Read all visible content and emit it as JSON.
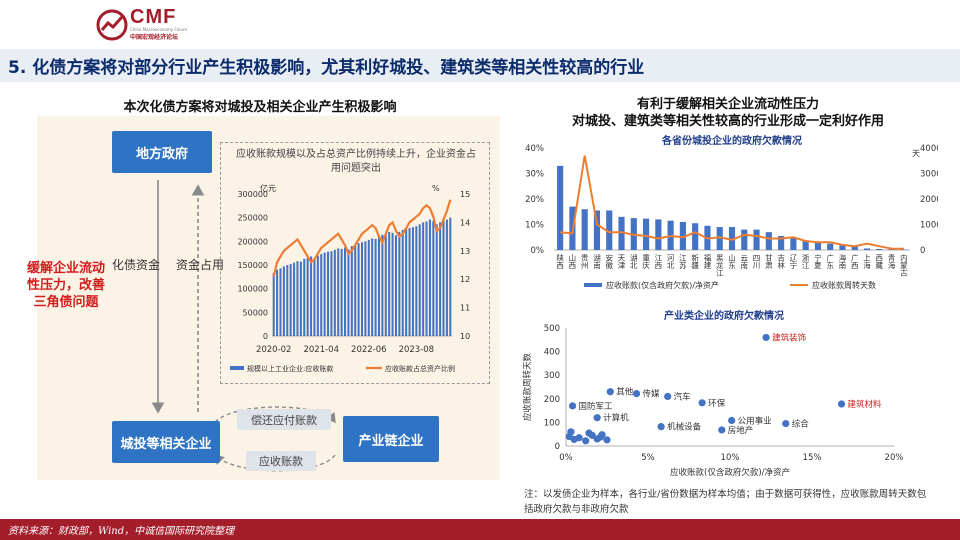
{
  "header": {
    "logo_text": "CMF",
    "logo_subtitle": "China Macroeconomy Forum",
    "logo_cn": "中国宏观经济论坛",
    "title": "5. 化债方案将对部分行业产生积极影响，尤其利好城投、建筑类等相关性较高的行业"
  },
  "left": {
    "heading": "本次化债方案将对城投及相关企业产生积极影响",
    "box_gov": "地方政府",
    "box_chengtou": "城投等相关企业",
    "box_chain": "产业链企业",
    "label_huazhai": "化债资金",
    "label_zijin": "资金占用",
    "pill_repay": "偿还应付账款",
    "pill_receivable": "应收账款",
    "red_note": "缓解企业流动性压力，改善三角债问题"
  },
  "right": {
    "heading_line1": "有利于缓解相关企业流动性压力",
    "heading_line2": "对城投、建筑类等相关性较高的行业形成一定利好作用"
  },
  "note": "注：以发债企业为样本，各行业/省份数据为样本均值；由于数据可获得性，应收账款周转天数包括政府欠款与非政府欠款",
  "footer": "资料来源：财政部，Wind，中诚信国际研究院整理",
  "colors": {
    "brand_red": "#a31d2b",
    "bar_blue": "#4472c4",
    "line_orange": "#ed7d31",
    "box_blue": "#2e73c4",
    "note_red": "#d21d1d"
  },
  "chart_data": [
    {
      "type": "bar+line",
      "title": "应收账款规模以及占总资产比例持续上升，企业资金占用问题突出",
      "y_left_unit": "亿元",
      "y_right_unit": "%",
      "ylim_left": [
        0,
        300000
      ],
      "yticks_left": [
        "0",
        "50000",
        "100000",
        "150000",
        "200000",
        "250000",
        "300000"
      ],
      "ylim_right": [
        10,
        15
      ],
      "yticks_right": [
        "10",
        "11",
        "12",
        "13",
        "14",
        "15"
      ],
      "xticks": [
        "2020-02",
        "2021-04",
        "2022-06",
        "2023-08"
      ],
      "series": [
        {
          "name": "规模以上工业企业:应收账款",
          "type": "bar",
          "values": [
            133000,
            140000,
            143000,
            147000,
            150000,
            152000,
            155000,
            158000,
            157000,
            163000,
            165000,
            168000,
            165000,
            170000,
            173000,
            176000,
            178000,
            179000,
            182000,
            185000,
            184000,
            187000,
            183000,
            190000,
            193000,
            196000,
            198000,
            200000,
            203000,
            206000,
            205000,
            210000,
            214000,
            217000,
            220000,
            218000,
            213000,
            220000,
            224000,
            228000,
            228000,
            230000,
            232000,
            236000,
            240000,
            242000,
            246000,
            243000,
            236000,
            240000,
            244000,
            246000,
            250000
          ]
        },
        {
          "name": "应收账款占总资产比例",
          "type": "line",
          "values": [
            12.1,
            12.6,
            12.8,
            13.0,
            13.1,
            13.2,
            13.3,
            13.4,
            13.2,
            13.0,
            12.8,
            12.6,
            12.7,
            12.9,
            13.1,
            13.2,
            13.3,
            13.4,
            13.5,
            13.6,
            13.4,
            13.2,
            12.9,
            13.0,
            13.2,
            13.4,
            13.6,
            13.7,
            13.8,
            13.9,
            13.8,
            13.5,
            13.3,
            13.6,
            13.9,
            14.0,
            13.7,
            13.5,
            13.6,
            13.8,
            14.0,
            14.1,
            14.2,
            14.3,
            14.5,
            14.6,
            14.5,
            14.2,
            13.7,
            13.8,
            14.1,
            14.4,
            14.8
          ]
        }
      ]
    },
    {
      "type": "bar+line",
      "title": "各省份城投企业的政府欠款情况",
      "y_left_unit": "",
      "y_right_unit": "天",
      "ylim_left": [
        0,
        40
      ],
      "yticks_left": [
        "0%",
        "10%",
        "20%",
        "30%",
        "40%"
      ],
      "ylim_right": [
        0,
        4000
      ],
      "yticks_right": [
        "0",
        "1000",
        "2000",
        "3000",
        "4000"
      ],
      "categories": [
        "陕西",
        "山西",
        "贵州",
        "湖南",
        "安徽",
        "天津",
        "湖北",
        "重庆",
        "江西",
        "河北",
        "江苏",
        "新疆",
        "福建",
        "黑龙江",
        "山东",
        "云南",
        "四川",
        "甘肃",
        "吉林",
        "辽宁",
        "浙江",
        "宁夏",
        "广东",
        "海南",
        "广西",
        "上海",
        "西藏",
        "青海",
        "内蒙古"
      ],
      "series": [
        {
          "name": "应收账款(仅含政府欠款)/净资产",
          "type": "bar",
          "values": [
            33,
            17,
            16,
            15.5,
            15.5,
            13,
            12.5,
            12.3,
            12,
            11.5,
            11,
            10.5,
            9.5,
            9,
            9,
            8,
            8,
            7,
            5.5,
            4.8,
            3.8,
            3,
            2.5,
            2.2,
            1.5,
            0.6,
            0.4,
            0.3,
            0.2
          ]
        },
        {
          "name": "应收账款周转天数",
          "type": "line",
          "values": [
            700,
            650,
            3700,
            1000,
            700,
            700,
            600,
            550,
            450,
            550,
            500,
            700,
            450,
            500,
            400,
            600,
            550,
            450,
            450,
            500,
            350,
            300,
            300,
            200,
            150,
            250,
            150,
            50,
            50
          ]
        }
      ]
    },
    {
      "type": "scatter",
      "title": "产业类企业的政府欠款情况",
      "xlabel": "应收账款(仅含政府欠款)/净资产",
      "ylabel": "应收账款周转天数",
      "xlim": [
        0,
        20
      ],
      "xticks": [
        "0%",
        "5%",
        "10%",
        "15%",
        "20%"
      ],
      "ylim": [
        0,
        500
      ],
      "yticks": [
        "0",
        "100",
        "200",
        "300",
        "400",
        "500"
      ],
      "points": [
        {
          "x": 12.2,
          "y": 460,
          "label": "建筑装饰",
          "highlight": true
        },
        {
          "x": 16.8,
          "y": 178,
          "label": "建筑材料",
          "highlight": true
        },
        {
          "x": 0.4,
          "y": 170,
          "label": "国防军工",
          "highlight": false
        },
        {
          "x": 2.7,
          "y": 230,
          "label": "其他",
          "highlight": false
        },
        {
          "x": 4.3,
          "y": 222,
          "label": "传媒",
          "highlight": false
        },
        {
          "x": 6.2,
          "y": 210,
          "label": "汽车",
          "highlight": false
        },
        {
          "x": 8.3,
          "y": 183,
          "label": "环保",
          "highlight": false
        },
        {
          "x": 1.9,
          "y": 120,
          "label": "计算机",
          "highlight": false
        },
        {
          "x": 10.1,
          "y": 108,
          "label": "公用事业",
          "highlight": false
        },
        {
          "x": 13.4,
          "y": 95,
          "label": "综合",
          "highlight": false
        },
        {
          "x": 5.8,
          "y": 82,
          "label": "机械设备",
          "highlight": false
        },
        {
          "x": 9.5,
          "y": 68,
          "label": "房地产",
          "highlight": false
        },
        {
          "x": 0.2,
          "y": 40,
          "label": "",
          "highlight": false
        },
        {
          "x": 0.5,
          "y": 28,
          "label": "",
          "highlight": false
        },
        {
          "x": 0.8,
          "y": 35,
          "label": "",
          "highlight": false
        },
        {
          "x": 1.2,
          "y": 22,
          "label": "",
          "highlight": false
        },
        {
          "x": 1.6,
          "y": 45,
          "label": "",
          "highlight": false
        },
        {
          "x": 1.9,
          "y": 30,
          "label": "",
          "highlight": false
        },
        {
          "x": 2.2,
          "y": 48,
          "label": "",
          "highlight": false
        },
        {
          "x": 2.5,
          "y": 26,
          "label": "",
          "highlight": false
        },
        {
          "x": 2.1,
          "y": 38,
          "label": "",
          "highlight": false
        },
        {
          "x": 0.3,
          "y": 60,
          "label": "",
          "highlight": false
        },
        {
          "x": 1.4,
          "y": 55,
          "label": "",
          "highlight": false
        }
      ]
    }
  ]
}
